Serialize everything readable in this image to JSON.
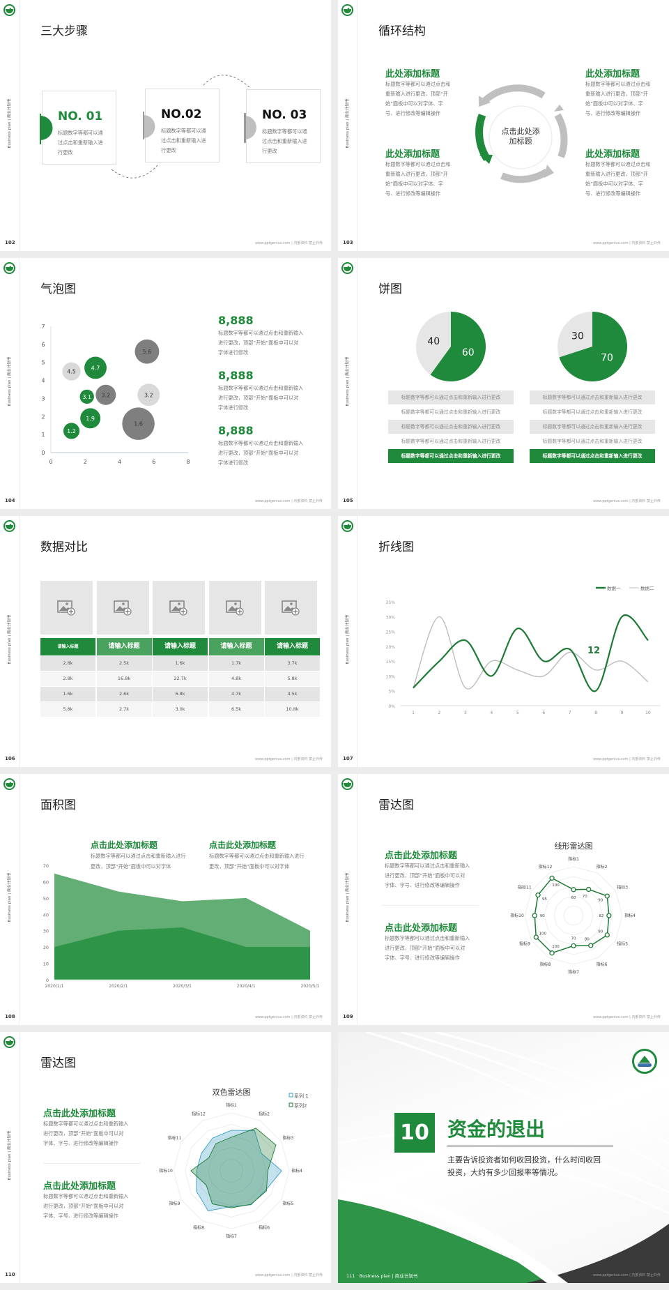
{
  "common": {
    "side_text": "Business plan | 商业计划书",
    "footer": "www.pptgenius.com | 内部资料 禁止外传",
    "colors": {
      "green": "#1f8a3b",
      "light_green": "#62ae74",
      "gray": "#bfbfbf",
      "dark_gray": "#7f7f7f",
      "light_gray": "#d9d9d9"
    }
  },
  "s102": {
    "page": "102",
    "title": "三大步骤",
    "steps": [
      {
        "no": "NO. 01",
        "text": "标题数字等都可以通过点击和重新输入进行更改",
        "active": true
      },
      {
        "no": "NO.02",
        "text": "标题数字等都可以通过点击和重新输入进行更改",
        "active": false
      },
      {
        "no": "NO. 03",
        "text": "标题数字等都可以通过点击和重新输入进行更改",
        "active": false
      }
    ]
  },
  "s103": {
    "page": "103",
    "title": "循环结构",
    "center": "点击此处添加标题",
    "blocks": [
      {
        "heading": "此处添加标题",
        "text": [
          "标题数字等都可以通过点击和",
          "重新输入进行更改，顶部“开",
          "始”面板中可以对字体、字",
          "号、进行修改等编辑操作"
        ]
      },
      {
        "heading": "此处添加标题",
        "text": [
          "标题数字等都可以通过点击和",
          "重新输入进行更改，顶部“开",
          "始”面板中可以对字体、字",
          "号、进行修改等编辑操作"
        ]
      },
      {
        "heading": "此处添加标题",
        "text": [
          "标题数字等都可以通过点击和",
          "重新输入进行更改，顶部“开",
          "始”面板中可以对字体、字",
          "号、进行修改等编辑操作"
        ]
      },
      {
        "heading": "此处添加标题",
        "text": [
          "标题数字等都可以通过点击和",
          "重新输入进行更改，顶部“开",
          "始”面板中可以对字体、字",
          "号、进行修改等编辑操作"
        ]
      }
    ]
  },
  "s104": {
    "page": "104",
    "title": "气泡图",
    "stats": [
      {
        "value": "8,888",
        "text": [
          "标题数字等都可以通过点击和重新输入",
          "进行更改，顶部“开始”面板中可以对",
          "字体进行修改"
        ]
      },
      {
        "value": "8,888",
        "text": [
          "标题数字等都可以通过点击和重新输入",
          "进行更改，顶部“开始”面板中可以对",
          "字体进行修改"
        ]
      },
      {
        "value": "8,888",
        "text": [
          "标题数字等都可以通过点击和重新输入",
          "进行更改，顶部“开始”面板中可以对",
          "字体进行修改"
        ]
      }
    ]
  },
  "s105": {
    "page": "105",
    "title": "饼图",
    "rows": [
      "标题数字等都可以通过点击和重新输入进行更改",
      "标题数字等都可以通过点击和重新输入进行更改",
      "标题数字等都可以通过点击和重新输入进行更改",
      "标题数字等都可以通过点击和重新输入进行更改",
      "标题数字等都可以通过点击和重新输入进行更改"
    ]
  },
  "s106": {
    "page": "106",
    "title": "数据对比",
    "headers": [
      "请输入标题",
      "请输入标题",
      "请输入标题",
      "请输入标题",
      "请输入标题"
    ],
    "rows": [
      [
        "2.8k",
        "2.5k",
        "1.6k",
        "1.7k",
        "3.7k"
      ],
      [
        "2.8k",
        "16.8k",
        "22.7k",
        "4.8k",
        "5.8k"
      ],
      [
        "1.6k",
        "2.6k",
        "6.8k",
        "4.7k",
        "4.5k"
      ],
      [
        "5.8k",
        "2.7k",
        "3.0k",
        "6.5k",
        "10.8k"
      ]
    ],
    "image_icon": "image-add-icon"
  },
  "s107": {
    "page": "107",
    "title": "折线图",
    "annotation": "12"
  },
  "s108": {
    "page": "108",
    "title": "面积图",
    "blocks": [
      {
        "heading": "点击此处添加标题",
        "text": [
          "标题数字等都可以通过点击和重新输入进行",
          "更改，顶部“开始”面板中可以对字体"
        ]
      },
      {
        "heading": "点击此处添加标题",
        "text": [
          "标题数字等都可以通过点击和重新输入进行",
          "更改，顶部“开始”面板中可以对字体"
        ]
      }
    ]
  },
  "s109": {
    "page": "109",
    "title": "雷达图",
    "blocks": [
      {
        "heading": "点击此处添加标题",
        "text": [
          "标题数字等都可以通过点击和重新输入",
          "进行更改，顶部“开始”面板中可以对",
          "字体、字号、进行修改等编辑操作"
        ]
      },
      {
        "heading": "点击此处添加标题",
        "text": [
          "标题数字等都可以通过点击和重新输入",
          "进行更改，顶部“开始”面板中可以对",
          "字体、字号、进行修改等编辑操作"
        ]
      }
    ]
  },
  "s110": {
    "page": "110",
    "title": "雷达图",
    "blocks": [
      {
        "heading": "点击此处添加标题",
        "text": [
          "标题数字等都可以通过点击和重新输入",
          "进行更改，顶部“开始”面板中可以对",
          "字体、字号、进行修改等编辑操作"
        ]
      },
      {
        "heading": "点击此处添加标题",
        "text": [
          "标题数字等都可以通过点击和重新输入",
          "进行更改，顶部“开始”面板中可以对",
          "字体、字号、进行修改等编辑操作"
        ]
      }
    ]
  },
  "s111": {
    "page": "111",
    "number": "10",
    "title": "资金的退出",
    "desc": [
      "主要告诉投资者如何收回投资，什么时间收回",
      "投资，大约有多少回报率等情况。"
    ],
    "footer_left": "Business plan | 商业计划书"
  },
  "chart_data": [
    {
      "slide": "104",
      "type": "scatter",
      "xlim": [
        0,
        8
      ],
      "ylim": [
        0,
        7
      ],
      "xticks": [
        0,
        2,
        4,
        6,
        8
      ],
      "yticks": [
        0,
        1,
        2,
        3,
        4,
        5,
        6,
        7
      ],
      "points": [
        {
          "x": 1.2,
          "y": 4.5,
          "size": 4.5,
          "label": "4.5",
          "tone": "light"
        },
        {
          "x": 2.6,
          "y": 4.7,
          "size": 5.5,
          "label": "4.7",
          "tone": "green"
        },
        {
          "x": 5.6,
          "y": 5.6,
          "size": 6,
          "label": "5.6",
          "tone": "dark"
        },
        {
          "x": 2.1,
          "y": 3.1,
          "size": 3.5,
          "label": "3.1",
          "tone": "green"
        },
        {
          "x": 3.2,
          "y": 3.2,
          "size": 5,
          "label": "3.2",
          "tone": "dark"
        },
        {
          "x": 5.7,
          "y": 3.2,
          "size": 5.5,
          "label": "3.2",
          "tone": "light"
        },
        {
          "x": 2.3,
          "y": 1.9,
          "size": 5,
          "label": "1.9",
          "tone": "green"
        },
        {
          "x": 5.1,
          "y": 1.6,
          "size": 8,
          "label": "1.6",
          "tone": "dark"
        },
        {
          "x": 1.2,
          "y": 1.2,
          "size": 4,
          "label": "1.2",
          "tone": "green"
        }
      ]
    },
    {
      "slide": "105",
      "type": "pie",
      "pies": [
        {
          "values": [
            60,
            40
          ],
          "labels": [
            "60",
            "40"
          ]
        },
        {
          "values": [
            70,
            30
          ],
          "labels": [
            "70",
            "30"
          ]
        }
      ]
    },
    {
      "slide": "107",
      "type": "line",
      "x": [
        "1",
        "2",
        "3",
        "4",
        "5",
        "6",
        "7",
        "8",
        "9",
        "10"
      ],
      "ylim": [
        0,
        35
      ],
      "yticks": [
        "0%",
        "5%",
        "10%",
        "15%",
        "20%",
        "25%",
        "30%",
        "35%"
      ],
      "legend": "top-right",
      "series": [
        {
          "name": "数据一",
          "values": [
            6,
            15,
            22,
            10,
            26,
            15,
            19,
            5,
            30,
            22
          ],
          "color": "#1f7a35"
        },
        {
          "name": "数据二",
          "values": [
            6,
            30,
            6,
            15,
            12,
            10,
            18,
            12,
            15,
            8
          ],
          "color": "#bdbdbd"
        }
      ]
    },
    {
      "slide": "108",
      "type": "area",
      "x": [
        "2020/1/1",
        "2020/2/1",
        "2020/3/1",
        "2020/4/1",
        "2020/5/1"
      ],
      "ylim": [
        0,
        70
      ],
      "yticks": [
        0,
        10,
        20,
        30,
        40,
        50,
        60,
        70
      ],
      "series": [
        {
          "values": [
            65,
            54,
            48,
            50,
            30
          ],
          "color": "#62ae74"
        },
        {
          "values": [
            20,
            30,
            32,
            20,
            20
          ],
          "color": "#2e9447"
        }
      ]
    },
    {
      "slide": "109",
      "type": "radar",
      "title": "线形雷达图",
      "axes": [
        "指标1",
        "指标2",
        "指标3",
        "指标4",
        "指标5",
        "指标6",
        "指标7",
        "指标8",
        "指标9",
        "指标10",
        "指标11",
        "指标12"
      ],
      "series": [
        {
          "values": [
            60,
            70,
            90,
            82,
            90,
            80,
            70,
            100,
            100,
            90,
            95,
            100
          ],
          "color": "#1f7a35"
        }
      ]
    },
    {
      "slide": "110",
      "type": "radar",
      "title": "双色雷达图",
      "legend": "top-right",
      "axes": [
        "指标1",
        "指标2",
        "指标3",
        "指标4",
        "指标5",
        "指标6",
        "指标7",
        "指标8",
        "指标9",
        "指标10",
        "指标11",
        "指标12"
      ],
      "series": [
        {
          "name": "系列 1",
          "values": [
            70,
            80,
            60,
            87,
            68,
            68,
            62,
            80,
            70,
            60,
            60,
            65
          ],
          "color": "#3aa0c8"
        },
        {
          "name": "系列2",
          "values": [
            58,
            85,
            89,
            63,
            70,
            67,
            64,
            66,
            50,
            70,
            45,
            54
          ],
          "color": "#1f7a35"
        }
      ]
    }
  ]
}
